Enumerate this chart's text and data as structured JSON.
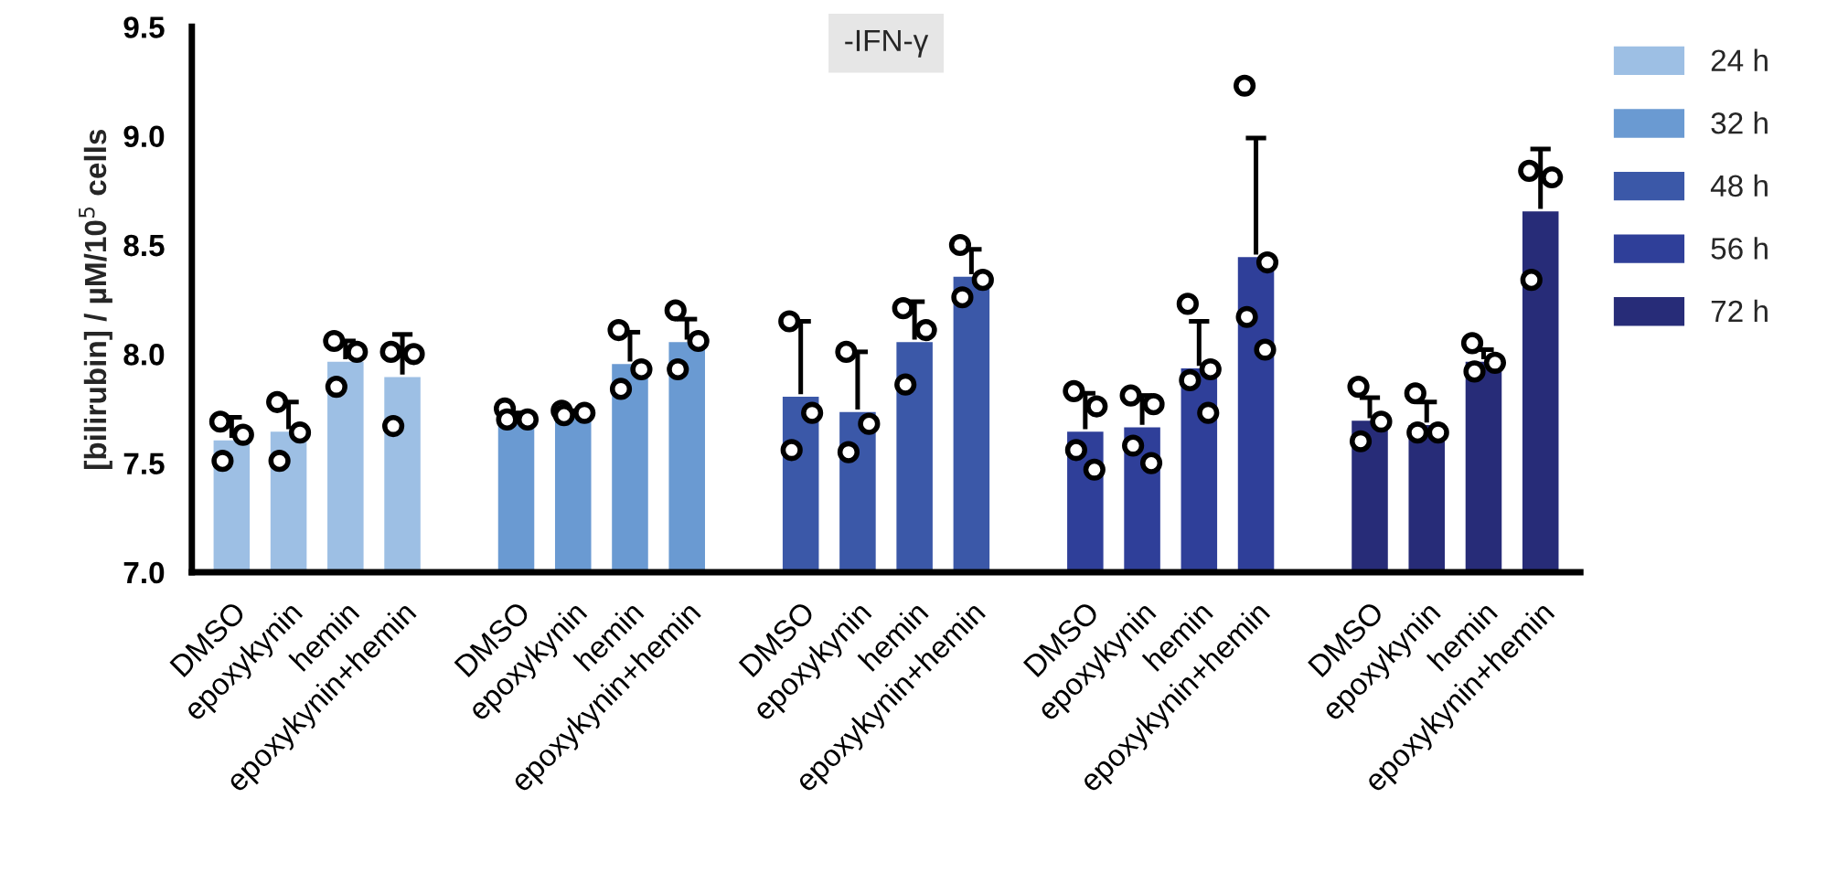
{
  "chart_data": {
    "type": "bar",
    "title": "-IFN-γ",
    "ylabel": "[bilirubin] / µM/10$^{5}$ cells",
    "categories": [
      "DMSO",
      "epoxykynin",
      "hemin",
      "epoxykynin+hemin",
      null,
      "DMSO",
      "epoxykynin",
      "hemin",
      "epoxykynin+hemin",
      null,
      "DMSO",
      "epoxykynin",
      "hemin",
      "epoxykynin+hemin",
      null,
      "DMSO",
      "epoxykynin",
      "hemin",
      "epoxykynin+hemin",
      null,
      "DMSO",
      "epoxykynin",
      "hemin",
      "epoxykynin+hemin"
    ],
    "series": [
      {
        "name": "24 h",
        "color": "#9dbfe4",
        "values": [
          7.61,
          7.65,
          7.97,
          7.9,
          null,
          null,
          null,
          null,
          null,
          null,
          null,
          null,
          null,
          null,
          null,
          null,
          null,
          null,
          null,
          null,
          null,
          null,
          null,
          null
        ],
        "errors": [
          0.1,
          0.13,
          0.09,
          0.19,
          null,
          null,
          null,
          null,
          null,
          null,
          null,
          null,
          null,
          null,
          null,
          null,
          null,
          null,
          null,
          null,
          null,
          null,
          null,
          null
        ]
      },
      {
        "name": "32 h",
        "color": "#6a9ad2",
        "values": [
          null,
          null,
          null,
          null,
          null,
          7.7,
          7.72,
          7.96,
          8.06,
          null,
          null,
          null,
          null,
          null,
          null,
          null,
          null,
          null,
          null,
          null,
          null,
          null,
          null,
          null
        ],
        "errors": [
          null,
          null,
          null,
          null,
          null,
          0.03,
          0.02,
          0.14,
          0.1,
          null,
          null,
          null,
          null,
          null,
          null,
          null,
          null,
          null,
          null,
          null,
          null,
          null,
          null,
          null
        ]
      },
      {
        "name": "48 h",
        "color": "#3b58a8",
        "values": [
          null,
          null,
          null,
          null,
          null,
          null,
          null,
          null,
          null,
          null,
          7.81,
          7.74,
          8.06,
          8.36,
          null,
          null,
          null,
          null,
          null,
          null,
          null,
          null,
          null,
          null
        ],
        "errors": [
          null,
          null,
          null,
          null,
          null,
          null,
          null,
          null,
          null,
          null,
          0.34,
          0.27,
          0.18,
          0.12,
          null,
          null,
          null,
          null,
          null,
          null,
          null,
          null,
          null,
          null
        ]
      },
      {
        "name": "56 h",
        "color": "#2f3f99",
        "values": [
          null,
          null,
          null,
          null,
          null,
          null,
          null,
          null,
          null,
          null,
          null,
          null,
          null,
          null,
          null,
          7.65,
          7.67,
          7.94,
          8.45,
          null,
          null,
          null,
          null,
          null
        ],
        "errors": [
          null,
          null,
          null,
          null,
          null,
          null,
          null,
          null,
          null,
          null,
          null,
          null,
          null,
          null,
          null,
          0.17,
          0.14,
          0.21,
          0.54,
          null,
          null,
          null,
          null,
          null
        ]
      },
      {
        "name": "72 h",
        "color": "#272c78",
        "values": [
          null,
          null,
          null,
          null,
          null,
          null,
          null,
          null,
          null,
          null,
          null,
          null,
          null,
          null,
          null,
          null,
          null,
          null,
          null,
          null,
          7.7,
          7.68,
          7.97,
          8.66
        ],
        "errors": [
          null,
          null,
          null,
          null,
          null,
          null,
          null,
          null,
          null,
          null,
          null,
          null,
          null,
          null,
          null,
          null,
          null,
          null,
          null,
          null,
          0.1,
          0.1,
          0.05,
          0.28
        ]
      },
      {
        "type": "scatter",
        "color": "#ffffff",
        "values": [
          7.69,
          7.78,
          8.06,
          8.01,
          null,
          7.75,
          7.74,
          8.11,
          8.2,
          null,
          8.15,
          8.01,
          8.21,
          8.5,
          null,
          7.83,
          7.81,
          8.23,
          9.23,
          null,
          7.85,
          7.82,
          8.05,
          8.84
        ]
      },
      {
        "type": "scatter",
        "color": "#ffffff",
        "values": [
          7.63,
          7.64,
          8.01,
          8.0,
          null,
          7.7,
          7.73,
          7.93,
          8.06,
          null,
          7.73,
          7.68,
          8.11,
          8.34,
          null,
          7.76,
          7.77,
          7.93,
          8.42,
          null,
          7.69,
          7.64,
          7.96,
          8.81
        ]
      },
      {
        "type": "scatter",
        "color": "#ffffff",
        "values": [
          7.51,
          7.51,
          7.85,
          7.67,
          null,
          7.7,
          7.72,
          7.84,
          7.93,
          null,
          7.56,
          7.55,
          7.86,
          8.26,
          null,
          7.56,
          7.58,
          7.88,
          8.17,
          null,
          7.6,
          7.64,
          7.92,
          8.34
        ]
      },
      {
        "type": "scatter",
        "color": "#ffffff",
        "values": [
          null,
          null,
          null,
          null,
          null,
          null,
          null,
          null,
          null,
          null,
          null,
          null,
          null,
          null,
          null,
          7.47,
          7.5,
          7.73,
          8.02,
          null,
          null,
          null,
          null,
          null
        ]
      }
    ],
    "ylim": [
      7.0,
      9.5
    ],
    "yticks": [
      {
        "value": 7.0,
        "label": "7.0"
      },
      {
        "value": 7.5,
        "label": "7.5"
      },
      {
        "value": 8.0,
        "label": "8.0"
      },
      {
        "value": 8.5,
        "label": "8.5"
      },
      {
        "value": 9.0,
        "label": "9.0"
      },
      {
        "value": 9.5,
        "label": "9.5"
      }
    ],
    "legend": "top right",
    "marker": "circle"
  }
}
